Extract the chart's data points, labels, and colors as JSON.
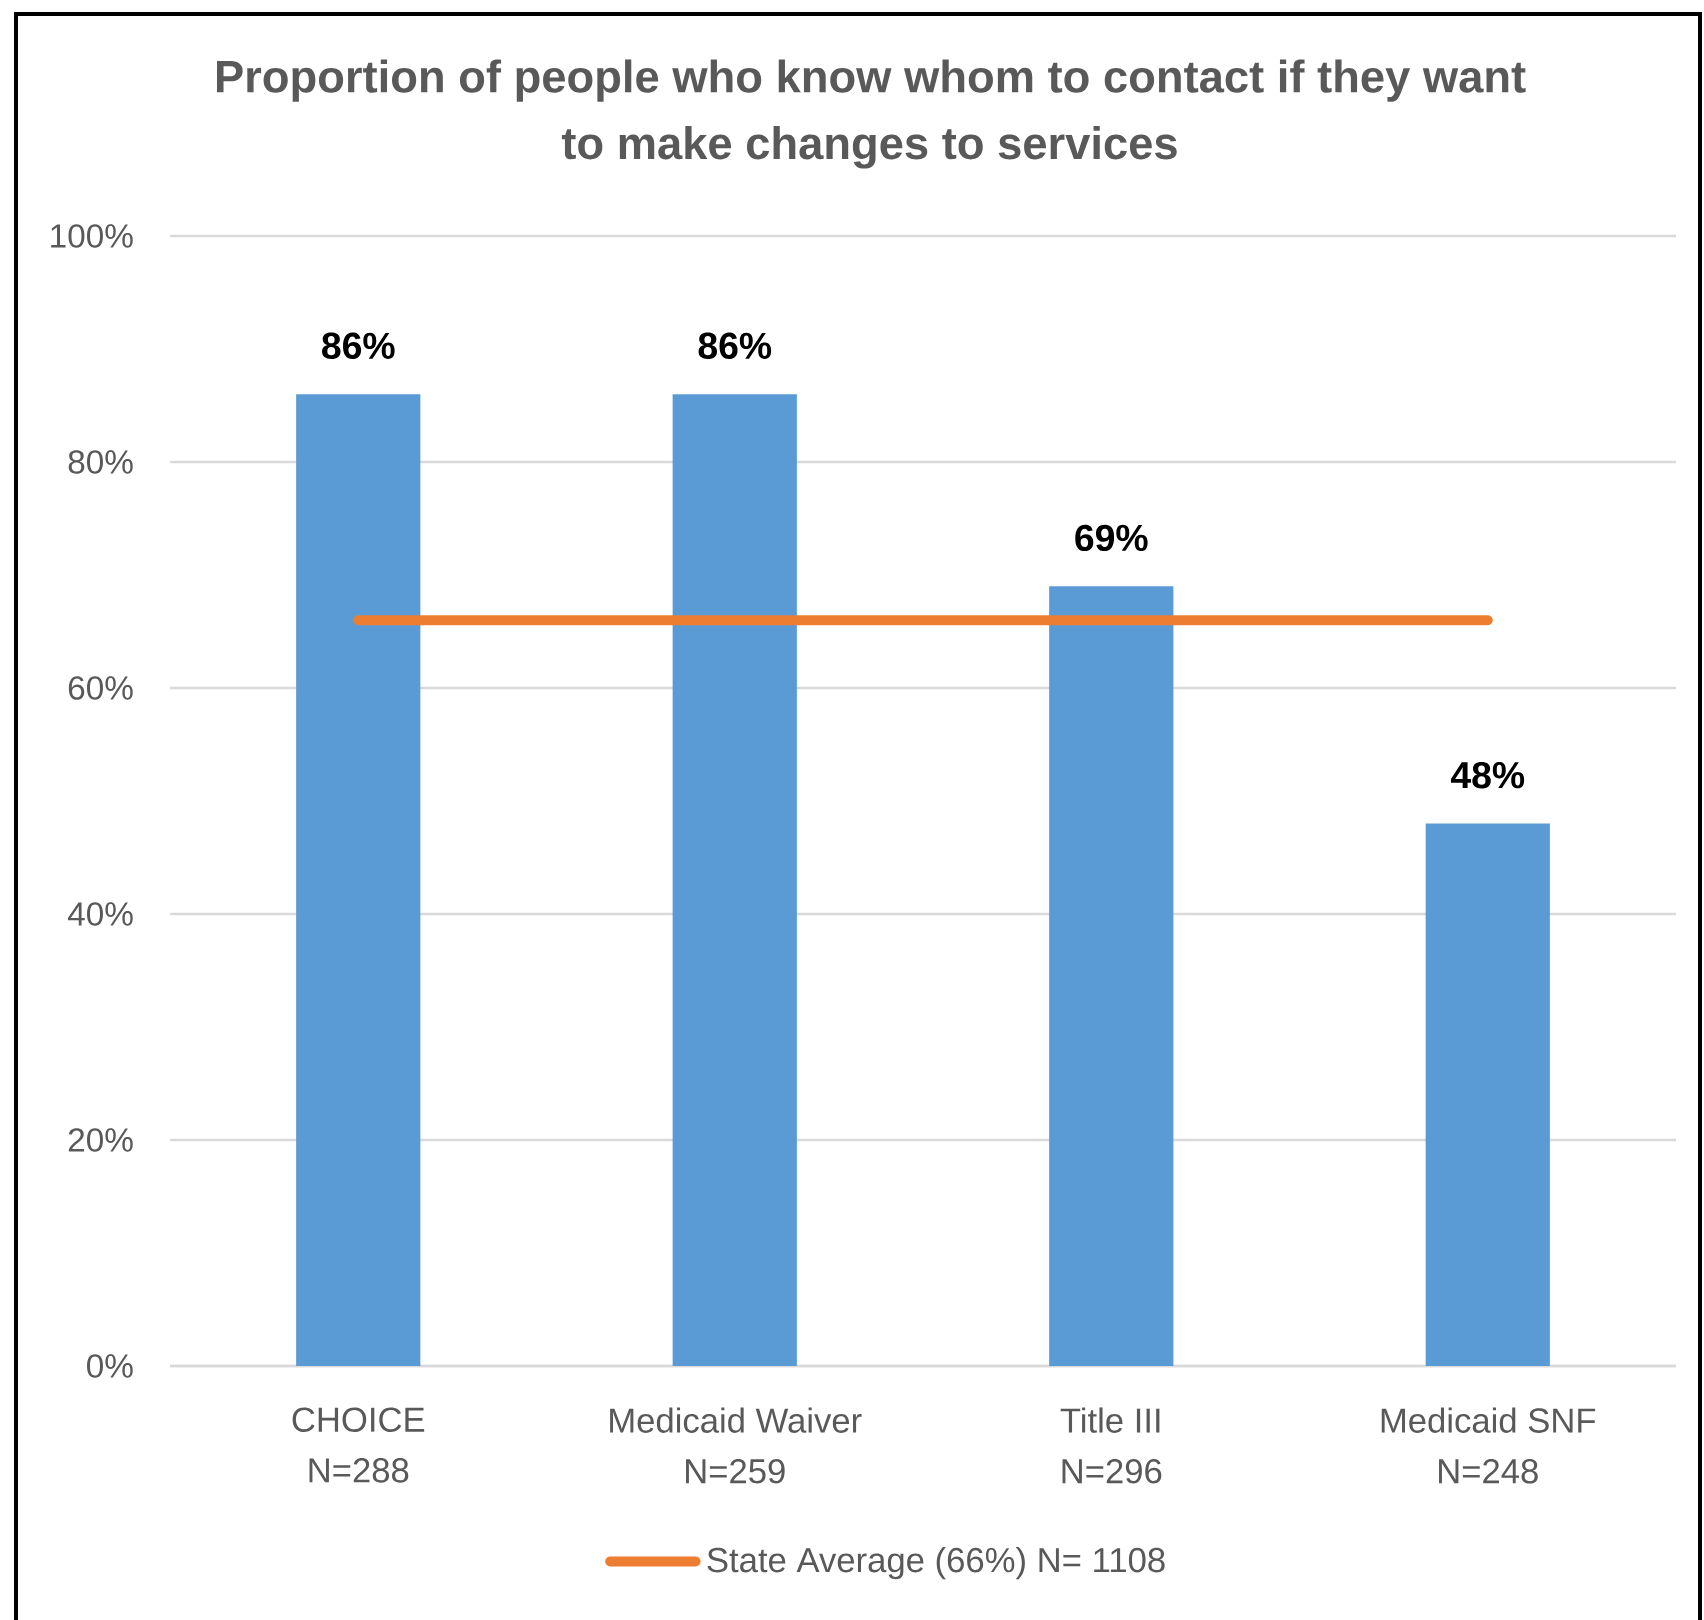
{
  "chart_data": {
    "type": "bar",
    "title": "Proportion of people who know whom to contact if they want to make changes to services",
    "categories": [
      "CHOICE\nN=288",
      "Medicaid Waiver\nN=259",
      "Title III\nN=296",
      "Medicaid SNF\nN=248"
    ],
    "series": [
      {
        "color": "#5b9bd5",
        "values": [
          86,
          86,
          69,
          48
        ],
        "value_labels": [
          "86%",
          "86%",
          "69%",
          "48%"
        ]
      },
      {
        "type": "line",
        "name": "State Average (66%) N= 1108",
        "color": "#ed7d31",
        "values": [
          66,
          66,
          66,
          66
        ]
      }
    ],
    "ylim": [
      0,
      100
    ],
    "yticks": [
      {
        "value": 0,
        "label": "0%"
      },
      {
        "value": 20,
        "label": "20%"
      },
      {
        "value": 40,
        "label": "40%"
      },
      {
        "value": 60,
        "label": "60%"
      },
      {
        "value": 80,
        "label": "80%"
      },
      {
        "value": 100,
        "label": "100%"
      }
    ],
    "grid": "y",
    "legend": "bottom",
    "marker": "none"
  }
}
